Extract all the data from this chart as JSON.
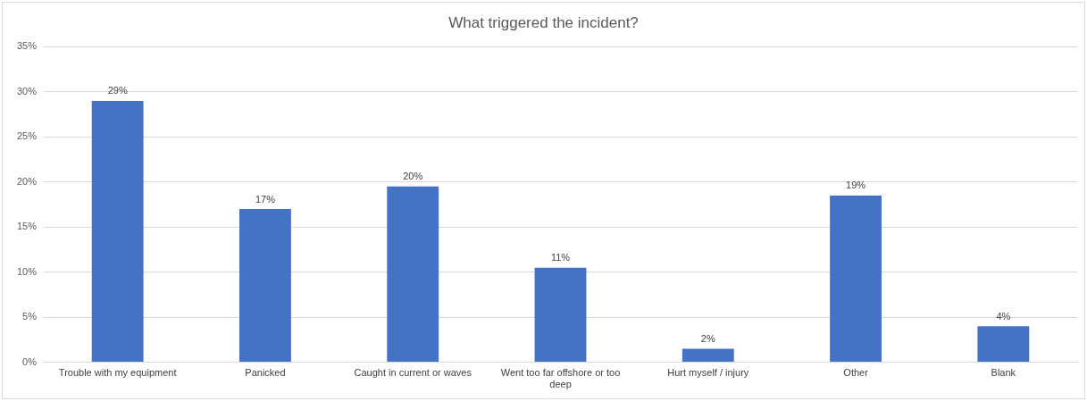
{
  "chart_data": {
    "type": "bar",
    "title": "What triggered the incident?",
    "categories": [
      "Trouble with my equipment",
      "Panicked",
      "Caught in current or waves",
      "Went too far offshore or too deep",
      "Hurt myself / injury",
      "Other",
      "Blank"
    ],
    "values": [
      29,
      17,
      19.5,
      10.5,
      1.5,
      18.5,
      4
    ],
    "value_labels": [
      "29%",
      "17%",
      "20%",
      "11%",
      "2%",
      "19%",
      "4%"
    ],
    "color": "#4472c4",
    "ylim": [
      0,
      35
    ],
    "yticks": [
      {
        "value": 0,
        "label": "0%"
      },
      {
        "value": 5,
        "label": "5%"
      },
      {
        "value": 10,
        "label": "10%"
      },
      {
        "value": 15,
        "label": "15%"
      },
      {
        "value": 20,
        "label": "20%"
      },
      {
        "value": 25,
        "label": "25%"
      },
      {
        "value": 30,
        "label": "30%"
      },
      {
        "value": 35,
        "label": "35%"
      }
    ],
    "grid": "y"
  }
}
